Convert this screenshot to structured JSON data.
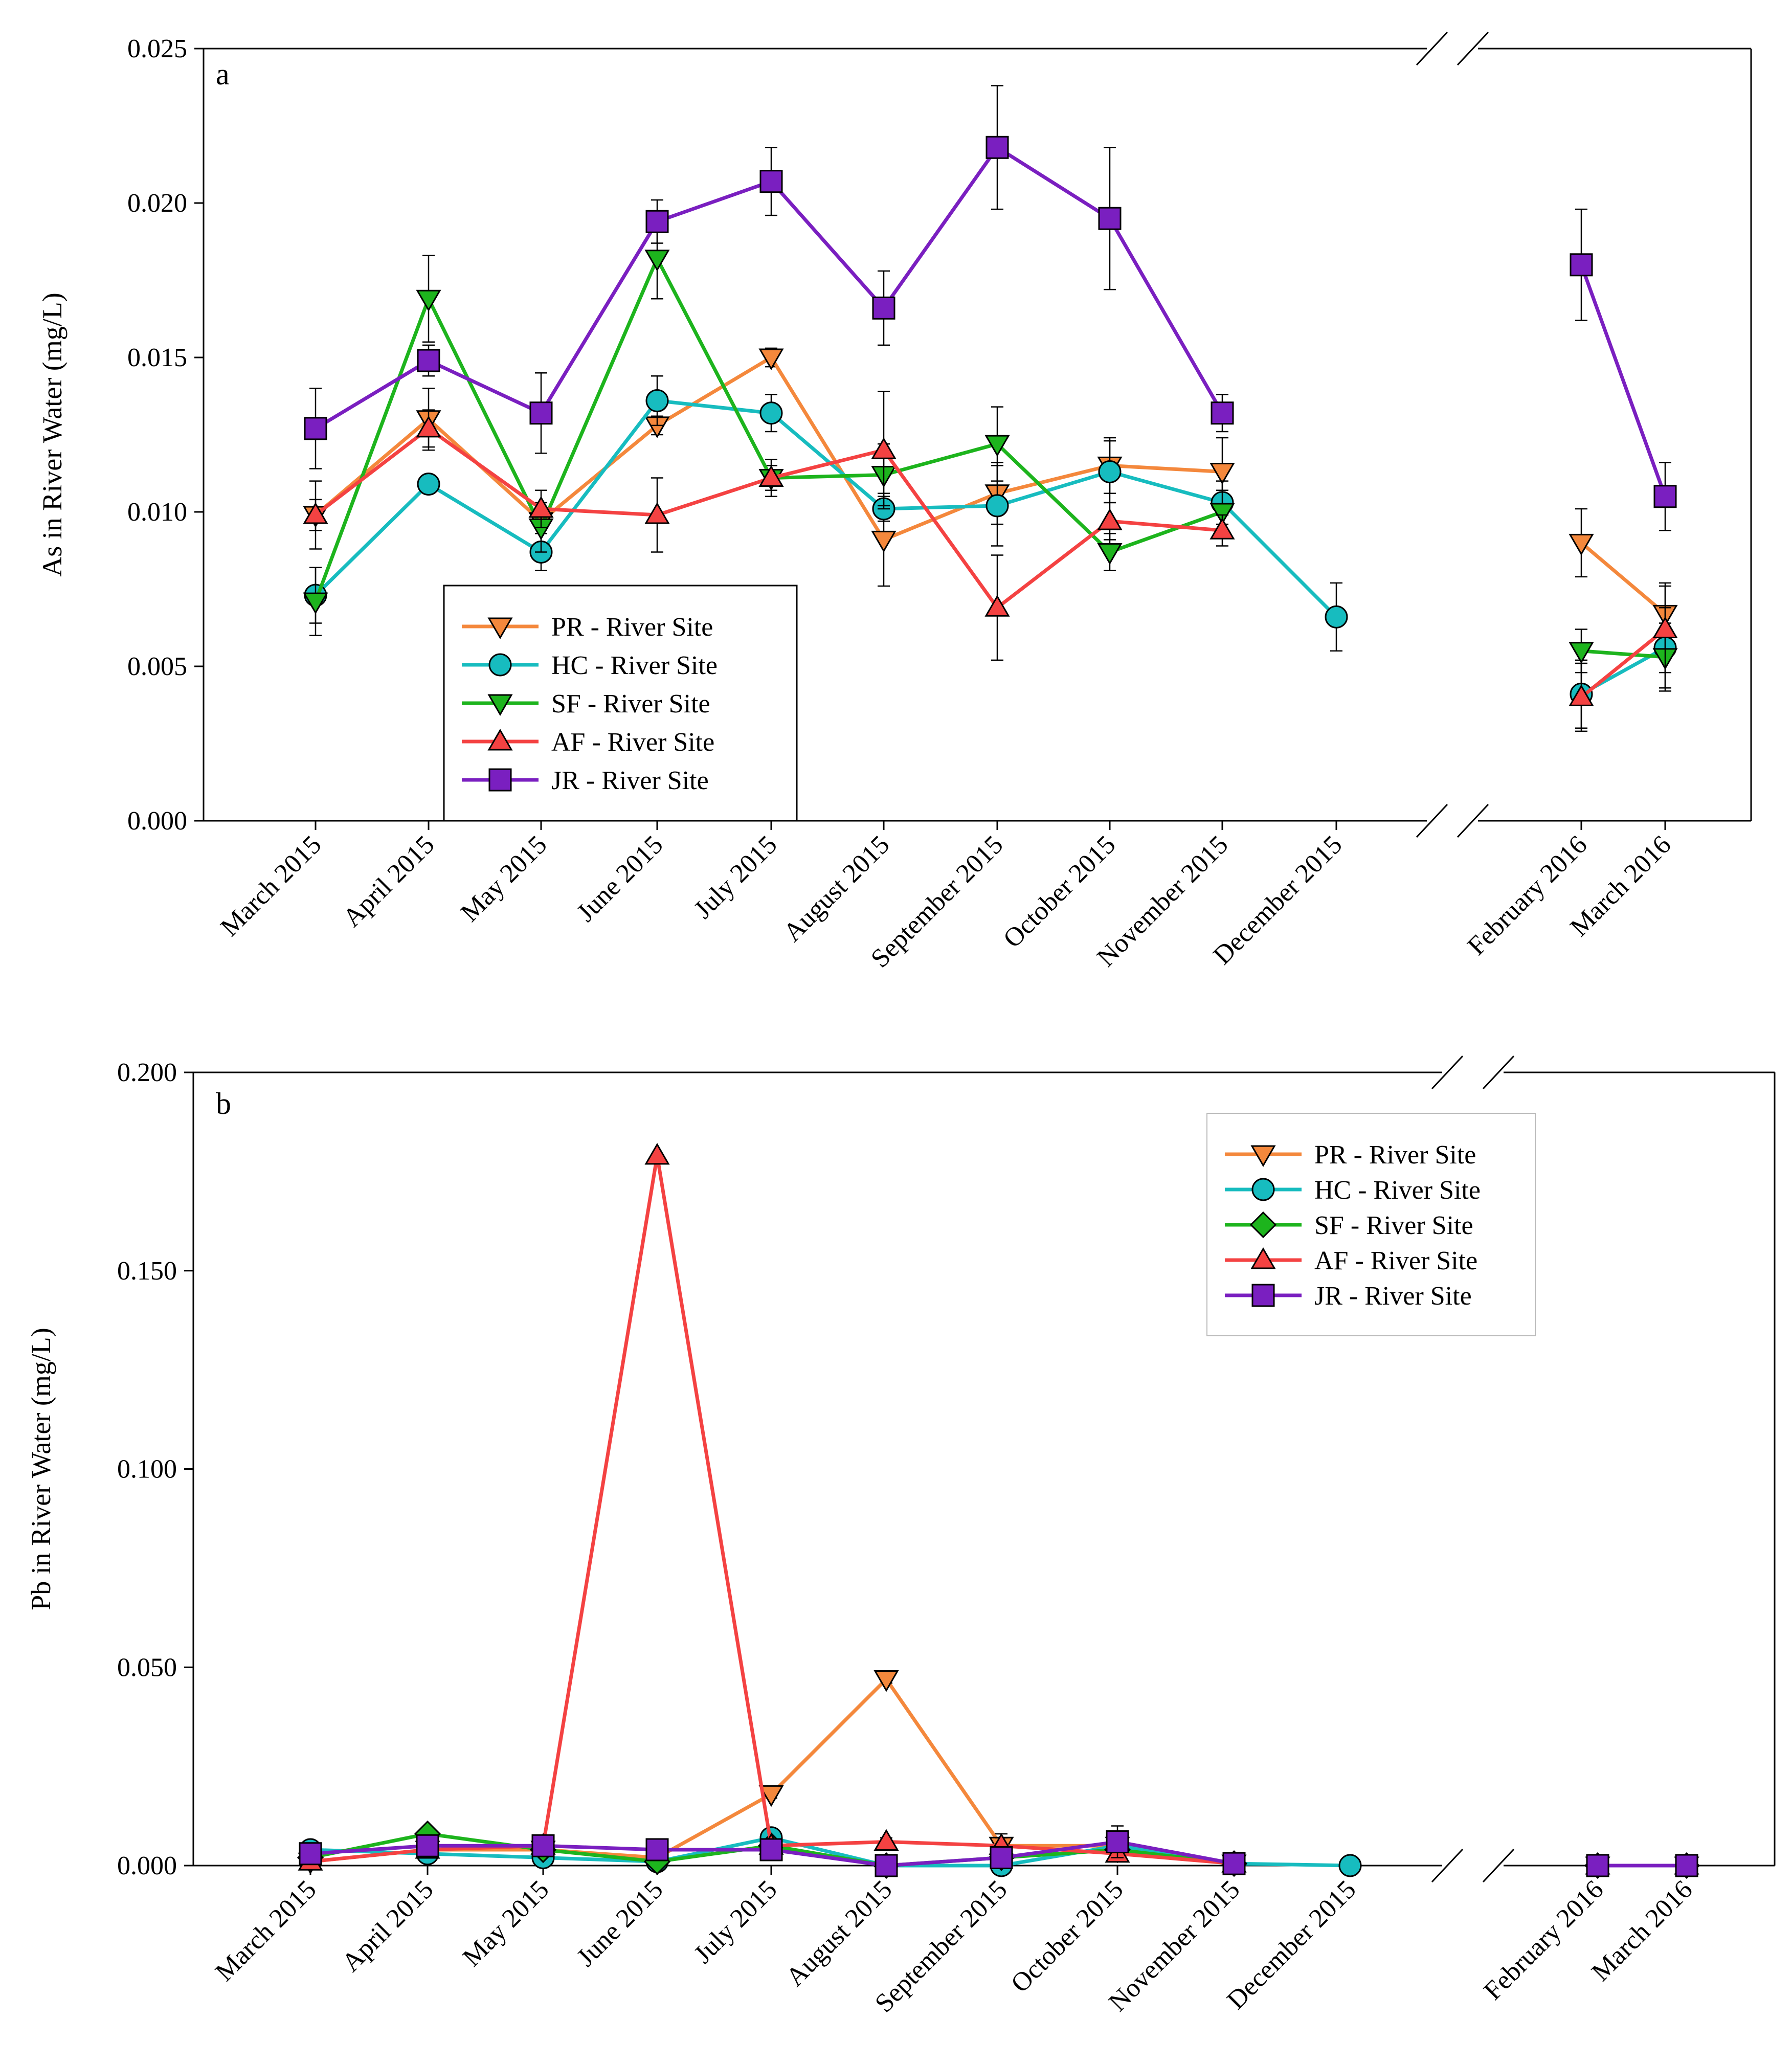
{
  "colors": {
    "PR": "#F4883C",
    "HC": "#17BCBF",
    "SF": "#1DB41D",
    "AF": "#F44242",
    "JR": "#7A1FC0"
  },
  "chart_data": [
    {
      "type": "line",
      "panel_label": "a",
      "ylabel": "As  in River Water (mg/L)",
      "xlabel": "",
      "ylim": [
        0,
        0.025
      ],
      "yticks": [
        "0.000",
        "0.005",
        "0.010",
        "0.015",
        "0.020",
        "0.025"
      ],
      "ytick_values": [
        0,
        0.005,
        0.01,
        0.015,
        0.02,
        0.025
      ],
      "categories": [
        "March 2015",
        "April 2015",
        "May 2015",
        "June 2015",
        "July 2015",
        "August 2015",
        "September 2015",
        "October 2015",
        "November 2015",
        "December 2015",
        "February 2016",
        "March 2016"
      ],
      "axis_break_after": "December 2015",
      "legend_position": "lower-left",
      "series": [
        {
          "key": "PR",
          "name": "PR - River Site",
          "marker": "triangle-down",
          "values": [
            0.0099,
            0.013,
            0.0097,
            0.0128,
            0.015,
            0.0091,
            0.0106,
            0.0115,
            0.0113,
            null,
            0.009,
            0.0067
          ],
          "errors": [
            0.0005,
            0.001,
            0.0004,
            0.0003,
            0.0003,
            0.0015,
            0.001,
            0.0009,
            0.0011,
            null,
            0.0011,
            0.001
          ]
        },
        {
          "key": "HC",
          "name": "HC - River Site",
          "marker": "circle",
          "values": [
            0.0073,
            0.0109,
            0.0087,
            0.0136,
            0.0132,
            0.0101,
            0.0102,
            0.0113,
            0.0103,
            0.0066,
            0.0041,
            0.0056
          ],
          "errors": [
            0.0009,
            0.0002,
            0.0006,
            0.0008,
            0.0006,
            0.0004,
            0.0013,
            0.001,
            0.0007,
            0.0011,
            0.0011,
            0.0013
          ]
        },
        {
          "key": "SF",
          "name": "SF - River Site",
          "marker": "triangle-down",
          "values": [
            0.0071,
            0.0169,
            0.0095,
            0.0182,
            0.0111,
            0.0112,
            0.0122,
            0.0087,
            0.01,
            null,
            0.0055,
            0.0053
          ],
          "errors": [
            0.0011,
            0.0014,
            0.0008,
            0.0013,
            0.0004,
            0.001,
            0.0012,
            0.0006,
            0.0007,
            null,
            0.0007,
            0.0011
          ]
        },
        {
          "key": "AF",
          "name": "AF - River Site",
          "marker": "triangle-up",
          "values": [
            0.0099,
            0.0127,
            0.0101,
            0.0099,
            0.0111,
            0.012,
            0.0069,
            0.0097,
            0.0094,
            null,
            0.004,
            0.0062
          ],
          "errors": [
            0.0011,
            0.0006,
            0.0006,
            0.0012,
            0.0006,
            0.0019,
            0.0017,
            0.0006,
            0.0005,
            null,
            0.0011,
            0.0014
          ]
        },
        {
          "key": "JR",
          "name": "JR - River Site",
          "marker": "square",
          "values": [
            0.0127,
            0.0149,
            0.0132,
            0.0194,
            0.0207,
            0.0166,
            0.0218,
            0.0195,
            0.0132,
            null,
            0.018,
            0.0105
          ],
          "errors": [
            0.0013,
            0.0005,
            0.0013,
            0.0007,
            0.0011,
            0.0012,
            0.002,
            0.0023,
            0.0006,
            null,
            0.0018,
            0.0011
          ]
        }
      ]
    },
    {
      "type": "line",
      "panel_label": "b",
      "ylabel": "Pb in River Water (mg/L)",
      "xlabel": "",
      "ylim": [
        0,
        0.2
      ],
      "yticks": [
        "0.000",
        "0.050",
        "0.100",
        "0.150",
        "0.200"
      ],
      "ytick_values": [
        0,
        0.05,
        0.1,
        0.15,
        0.2
      ],
      "categories": [
        "March 2015",
        "April 2015",
        "May 2015",
        "June 2015",
        "July 2015",
        "August 2015",
        "September 2015",
        "October 2015",
        "November 2015",
        "December 2015",
        "February 2016",
        "March 2016"
      ],
      "axis_break_after": "December 2015",
      "legend_position": "top-right",
      "series": [
        {
          "key": "PR",
          "name": "PR - River Site",
          "marker": "triangle-down",
          "values": [
            0.001,
            0.004,
            0.004,
            0.002,
            0.018,
            0.047,
            0.005,
            0.005,
            0.0005,
            null,
            0.0,
            0.0
          ],
          "errors": [
            0.0005,
            0.001,
            0.001,
            0.0005,
            0.001,
            0.001,
            0.003,
            0.002,
            0.0005,
            null,
            0.0,
            0.0
          ]
        },
        {
          "key": "HC",
          "name": "HC - River Site",
          "marker": "circle",
          "values": [
            0.004,
            0.003,
            0.002,
            0.001,
            0.007,
            0.0,
            0.0,
            0.005,
            0.0005,
            0.0,
            0.0,
            0.0
          ],
          "errors": [
            0.001,
            0.0005,
            0.001,
            0.0005,
            0.001,
            0.0,
            0.0,
            0.001,
            0.0005,
            0.0,
            0.0,
            0.0
          ]
        },
        {
          "key": "SF",
          "name": "SF - River Site",
          "marker": "diamond",
          "values": [
            0.002,
            0.008,
            0.004,
            0.001,
            0.005,
            0.0,
            0.002,
            0.004,
            0.0005,
            null,
            0.0,
            0.0
          ],
          "errors": [
            0.0005,
            0.001,
            0.001,
            0.0005,
            0.001,
            0.0,
            0.001,
            0.002,
            0.0005,
            null,
            0.0,
            0.0
          ]
        },
        {
          "key": "AF",
          "name": "AF - River Site",
          "marker": "triangle-up",
          "values": [
            0.001,
            0.004,
            0.005,
            0.179,
            0.005,
            0.006,
            0.005,
            0.003,
            0.0005,
            null,
            0.0,
            0.0
          ],
          "errors": [
            0.0005,
            0.001,
            0.001,
            0.0005,
            0.001,
            0.001,
            0.002,
            0.001,
            0.0005,
            null,
            0.0,
            0.0
          ]
        },
        {
          "key": "JR",
          "name": "JR - River Site",
          "marker": "square",
          "values": [
            0.003,
            0.005,
            0.005,
            0.004,
            0.004,
            0.0,
            0.002,
            0.006,
            0.0005,
            null,
            0.0,
            0.0
          ],
          "errors": [
            0.0005,
            0.001,
            0.001,
            0.0005,
            0.001,
            0.0,
            0.001,
            0.004,
            0.0005,
            null,
            0.0,
            0.0
          ]
        }
      ]
    }
  ]
}
